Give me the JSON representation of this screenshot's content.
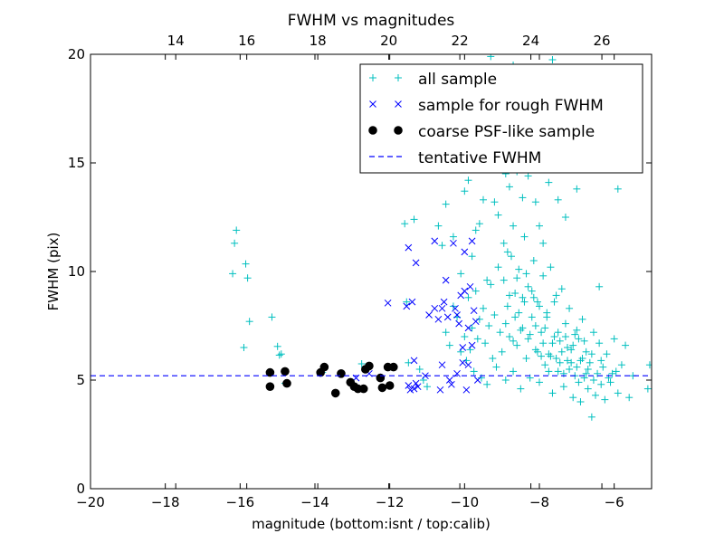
{
  "chart_data": {
    "type": "scatter",
    "title": "FWHM vs magnitudes",
    "xlabel": "magnitude (bottom:isnt / top:calib)",
    "ylabel": "FWHM (pix)",
    "xlim": [
      -20,
      -5
    ],
    "ylim": [
      0,
      20
    ],
    "top_xlim": [
      11.6,
      27.4
    ],
    "x_ticks": [
      "−20",
      "−18",
      "−16",
      "−14",
      "−12",
      "−10",
      "−8",
      "−6"
    ],
    "x_tick_values": [
      -20,
      -18,
      -16,
      -14,
      -12,
      -10,
      -8,
      -6
    ],
    "top_x_ticks": [
      "14",
      "16",
      "18",
      "20",
      "22",
      "24",
      "26"
    ],
    "top_x_tick_values": [
      14,
      16,
      18,
      20,
      22,
      24,
      26
    ],
    "y_ticks": [
      "0",
      "5",
      "10",
      "15",
      "20"
    ],
    "y_tick_values": [
      0,
      5,
      10,
      15,
      20
    ],
    "grid": false,
    "legend_position": "top-right",
    "tentative_fwhm": 5.2,
    "series": [
      {
        "name": "all sample",
        "marker": "plus",
        "color": "#00bfbf",
        "points": [
          [
            -16.2,
            9.9
          ],
          [
            -16.1,
            11.9
          ],
          [
            -16.15,
            11.3
          ],
          [
            -15.85,
            10.35
          ],
          [
            -15.8,
            9.7
          ],
          [
            -15.75,
            7.7
          ],
          [
            -15.9,
            6.5
          ],
          [
            -15.15,
            7.9
          ],
          [
            -15.0,
            6.55
          ],
          [
            -14.95,
            6.15
          ],
          [
            -14.9,
            6.2
          ],
          [
            -15.2,
            5.35
          ],
          [
            -15.2,
            4.7
          ],
          [
            -14.8,
            5.4
          ],
          [
            -14.8,
            4.85
          ],
          [
            -13.8,
            5.35
          ],
          [
            -13.75,
            5.6
          ],
          [
            -13.45,
            4.4
          ],
          [
            -13.3,
            5.3
          ],
          [
            -13.05,
            4.9
          ],
          [
            -12.9,
            4.7
          ],
          [
            -12.85,
            4.6
          ],
          [
            -12.75,
            5.75
          ],
          [
            -12.7,
            4.6
          ],
          [
            -12.65,
            5.5
          ],
          [
            -12.6,
            5.65
          ],
          [
            -12.25,
            5.1
          ],
          [
            -12.2,
            4.65
          ],
          [
            -12.05,
            5.6
          ],
          [
            -12.0,
            4.75
          ],
          [
            -11.9,
            5.6
          ],
          [
            -11.6,
            12.2
          ],
          [
            -11.35,
            12.4
          ],
          [
            -11.55,
            8.6
          ],
          [
            -11.5,
            5.8
          ],
          [
            -11.2,
            5.5
          ],
          [
            -11.1,
            5.0
          ],
          [
            -11.0,
            4.7
          ],
          [
            -10.7,
            12.1
          ],
          [
            -10.6,
            11.2
          ],
          [
            -10.5,
            13.1
          ],
          [
            -10.3,
            11.6
          ],
          [
            -10.1,
            9.9
          ],
          [
            -10.0,
            13.7
          ],
          [
            -9.9,
            14.2
          ],
          [
            -9.8,
            10.7
          ],
          [
            -9.7,
            11.9
          ],
          [
            -9.6,
            12.2
          ],
          [
            -9.5,
            13.3
          ],
          [
            -9.4,
            9.6
          ],
          [
            -9.3,
            14.9
          ],
          [
            -9.2,
            13.2
          ],
          [
            -9.1,
            12.6
          ],
          [
            -9.0,
            15.1
          ],
          [
            -8.95,
            11.3
          ],
          [
            -8.9,
            14.5
          ],
          [
            -8.85,
            10.9
          ],
          [
            -8.8,
            13.9
          ],
          [
            -8.7,
            12.1
          ],
          [
            -8.6,
            14.6
          ],
          [
            -8.55,
            15.3
          ],
          [
            -8.5,
            16.8
          ],
          [
            -8.45,
            13.4
          ],
          [
            -8.4,
            18.9
          ],
          [
            -8.3,
            14.4
          ],
          [
            -8.2,
            15.9
          ],
          [
            -8.1,
            13.2
          ],
          [
            -8.0,
            12.1
          ],
          [
            -7.9,
            11.3
          ],
          [
            -7.75,
            14.1
          ],
          [
            -7.7,
            17.3
          ],
          [
            -7.5,
            13.3
          ],
          [
            -7.3,
            12.5
          ],
          [
            -7.0,
            13.8
          ],
          [
            -6.4,
            9.3
          ],
          [
            -5.9,
            13.8
          ],
          [
            -9.3,
            19.9
          ],
          [
            -8.7,
            19.5
          ],
          [
            -7.65,
            19.75
          ],
          [
            -10.5,
            7.2
          ],
          [
            -10.4,
            6.6
          ],
          [
            -10.3,
            8.4
          ],
          [
            -10.2,
            7.9
          ],
          [
            -10.1,
            6.3
          ],
          [
            -10.0,
            7.0
          ],
          [
            -9.95,
            5.9
          ],
          [
            -9.9,
            8.8
          ],
          [
            -9.85,
            6.4
          ],
          [
            -9.8,
            7.4
          ],
          [
            -9.75,
            5.4
          ],
          [
            -9.7,
            9.1
          ],
          [
            -9.65,
            6.9
          ],
          [
            -9.6,
            7.8
          ],
          [
            -9.55,
            5.1
          ],
          [
            -9.5,
            8.3
          ],
          [
            -9.45,
            6.7
          ],
          [
            -9.4,
            4.8
          ],
          [
            -9.35,
            7.5
          ],
          [
            -9.3,
            9.4
          ],
          [
            -9.25,
            6.0
          ],
          [
            -9.2,
            8.0
          ],
          [
            -9.15,
            5.6
          ],
          [
            -9.1,
            10.2
          ],
          [
            -9.05,
            7.2
          ],
          [
            -9.0,
            6.3
          ],
          [
            -8.95,
            9.6
          ],
          [
            -8.9,
            5.0
          ],
          [
            -8.85,
            8.4
          ],
          [
            -8.8,
            7.0
          ],
          [
            -8.75,
            10.7
          ],
          [
            -8.7,
            5.4
          ],
          [
            -8.65,
            9.0
          ],
          [
            -8.6,
            6.6
          ],
          [
            -8.55,
            8.1
          ],
          [
            -8.5,
            4.6
          ],
          [
            -8.45,
            7.4
          ],
          [
            -8.4,
            11.6
          ],
          [
            -8.35,
            6.0
          ],
          [
            -8.3,
            9.3
          ],
          [
            -8.25,
            5.1
          ],
          [
            -8.2,
            7.9
          ],
          [
            -8.15,
            10.5
          ],
          [
            -8.1,
            6.4
          ],
          [
            -8.05,
            8.6
          ],
          [
            -8.0,
            4.9
          ],
          [
            -7.95,
            7.2
          ],
          [
            -7.9,
            9.8
          ],
          [
            -7.85,
            5.7
          ],
          [
            -7.8,
            8.1
          ],
          [
            -7.75,
            6.2
          ],
          [
            -7.7,
            10.2
          ],
          [
            -7.65,
            4.4
          ],
          [
            -7.6,
            7.0
          ],
          [
            -7.55,
            8.9
          ],
          [
            -7.5,
            5.4
          ],
          [
            -7.45,
            6.8
          ],
          [
            -7.4,
            9.2
          ],
          [
            -7.35,
            4.7
          ],
          [
            -7.3,
            7.6
          ],
          [
            -7.25,
            5.9
          ],
          [
            -7.2,
            8.3
          ],
          [
            -7.15,
            6.4
          ],
          [
            -7.1,
            4.2
          ],
          [
            -7.05,
            7.1
          ],
          [
            -7.0,
            5.6
          ],
          [
            -6.95,
            6.9
          ],
          [
            -6.9,
            4.0
          ],
          [
            -6.85,
            7.8
          ],
          [
            -6.8,
            5.1
          ],
          [
            -6.75,
            6.3
          ],
          [
            -6.7,
            4.6
          ],
          [
            -6.65,
            5.8
          ],
          [
            -6.6,
            3.3
          ],
          [
            -6.55,
            7.2
          ],
          [
            -6.5,
            4.3
          ],
          [
            -6.45,
            5.3
          ],
          [
            -6.4,
            6.7
          ],
          [
            -6.35,
            4.8
          ],
          [
            -6.3,
            5.6
          ],
          [
            -6.25,
            4.1
          ],
          [
            -6.2,
            6.2
          ],
          [
            -6.1,
            4.9
          ],
          [
            -6.05,
            5.3
          ],
          [
            -6.0,
            6.9
          ],
          [
            -5.9,
            4.4
          ],
          [
            -5.8,
            5.7
          ],
          [
            -5.7,
            6.6
          ],
          [
            -5.6,
            4.2
          ],
          [
            -5.5,
            5.2
          ],
          [
            -5.1,
            4.6
          ],
          [
            -5.05,
            5.7
          ],
          [
            -8.9,
            7.6
          ],
          [
            -8.8,
            8.9
          ],
          [
            -8.7,
            6.8
          ],
          [
            -8.6,
            9.7
          ],
          [
            -8.5,
            7.3
          ],
          [
            -8.4,
            8.6
          ],
          [
            -8.3,
            6.9
          ],
          [
            -8.2,
            9.1
          ],
          [
            -8.1,
            7.5
          ],
          [
            -8.0,
            8.4
          ],
          [
            -7.9,
            6.7
          ],
          [
            -7.8,
            7.9
          ],
          [
            -7.7,
            6.1
          ],
          [
            -7.6,
            8.6
          ],
          [
            -7.5,
            7.2
          ],
          [
            -7.4,
            6.3
          ],
          [
            -7.3,
            7.0
          ],
          [
            -7.2,
            5.5
          ],
          [
            -7.1,
            6.6
          ],
          [
            -7.0,
            7.3
          ],
          [
            -6.9,
            5.9
          ],
          [
            -6.8,
            6.8
          ],
          [
            -6.7,
            5.5
          ],
          [
            -6.6,
            6.2
          ],
          [
            -8.65,
            7.9
          ],
          [
            -8.45,
            8.8
          ],
          [
            -8.25,
            7.1
          ],
          [
            -8.05,
            6.3
          ],
          [
            -7.85,
            7.4
          ],
          [
            -7.65,
            6.7
          ],
          [
            -7.45,
            5.8
          ],
          [
            -7.25,
            6.5
          ],
          [
            -7.05,
            5.2
          ],
          [
            -6.85,
            6.0
          ],
          [
            -8.55,
            10.1
          ],
          [
            -8.35,
            9.9
          ],
          [
            -8.15,
            8.8
          ],
          [
            -7.95,
            6.1
          ],
          [
            -7.75,
            5.4
          ],
          [
            -7.55,
            6.0
          ],
          [
            -7.35,
            5.3
          ],
          [
            -7.15,
            5.8
          ],
          [
            -6.95,
            4.9
          ],
          [
            -6.75,
            5.3
          ],
          [
            -6.55,
            5.0
          ],
          [
            -6.35,
            5.9
          ],
          [
            -6.15,
            5.1
          ],
          [
            -5.95,
            5.4
          ]
        ]
      },
      {
        "name": "sample for rough FWHM",
        "marker": "x",
        "color": "#0000ff",
        "points": [
          [
            -12.05,
            8.55
          ],
          [
            -11.55,
            8.4
          ],
          [
            -11.4,
            8.6
          ],
          [
            -11.3,
            10.4
          ],
          [
            -11.5,
            11.1
          ],
          [
            -11.35,
            5.9
          ],
          [
            -11.5,
            4.75
          ],
          [
            -11.45,
            4.55
          ],
          [
            -11.35,
            4.6
          ],
          [
            -11.3,
            4.85
          ],
          [
            -11.25,
            4.7
          ],
          [
            -11.05,
            5.2
          ],
          [
            -10.95,
            8.0
          ],
          [
            -10.8,
            11.4
          ],
          [
            -10.8,
            8.3
          ],
          [
            -10.7,
            7.8
          ],
          [
            -10.65,
            4.55
          ],
          [
            -10.6,
            5.7
          ],
          [
            -10.55,
            8.6
          ],
          [
            -10.5,
            9.6
          ],
          [
            -10.45,
            7.9
          ],
          [
            -10.4,
            5.0
          ],
          [
            -10.35,
            4.8
          ],
          [
            -10.3,
            11.3
          ],
          [
            -10.25,
            8.3
          ],
          [
            -10.2,
            5.3
          ],
          [
            -10.15,
            7.6
          ],
          [
            -10.1,
            8.9
          ],
          [
            -10.05,
            6.5
          ],
          [
            -10.0,
            10.9
          ],
          [
            -10.0,
            9.1
          ],
          [
            -9.95,
            4.55
          ],
          [
            -9.9,
            5.7
          ],
          [
            -9.85,
            9.3
          ],
          [
            -9.8,
            11.4
          ],
          [
            -9.8,
            6.6
          ],
          [
            -9.75,
            8.2
          ],
          [
            -9.7,
            7.7
          ],
          [
            -9.65,
            5.0
          ],
          [
            -10.6,
            8.3
          ],
          [
            -10.2,
            8.0
          ],
          [
            -10.05,
            5.8
          ],
          [
            -9.9,
            7.4
          ],
          [
            -12.55,
            5.3
          ],
          [
            -12.9,
            5.1
          ]
        ]
      },
      {
        "name": "coarse PSF-like sample",
        "marker": "circle",
        "color": "#000000",
        "points": [
          [
            -15.2,
            5.35
          ],
          [
            -15.2,
            4.7
          ],
          [
            -14.8,
            5.4
          ],
          [
            -14.75,
            4.85
          ],
          [
            -13.85,
            5.35
          ],
          [
            -13.75,
            5.6
          ],
          [
            -13.45,
            4.4
          ],
          [
            -13.3,
            5.3
          ],
          [
            -13.05,
            4.9
          ],
          [
            -12.95,
            4.7
          ],
          [
            -12.85,
            4.6
          ],
          [
            -12.7,
            4.6
          ],
          [
            -12.65,
            5.5
          ],
          [
            -12.55,
            5.65
          ],
          [
            -12.25,
            5.1
          ],
          [
            -12.2,
            4.65
          ],
          [
            -12.05,
            5.6
          ],
          [
            -12.0,
            4.75
          ],
          [
            -11.9,
            5.6
          ]
        ]
      },
      {
        "name": "tentative FWHM",
        "marker": "dashed-line",
        "color": "#0000ff"
      }
    ]
  }
}
